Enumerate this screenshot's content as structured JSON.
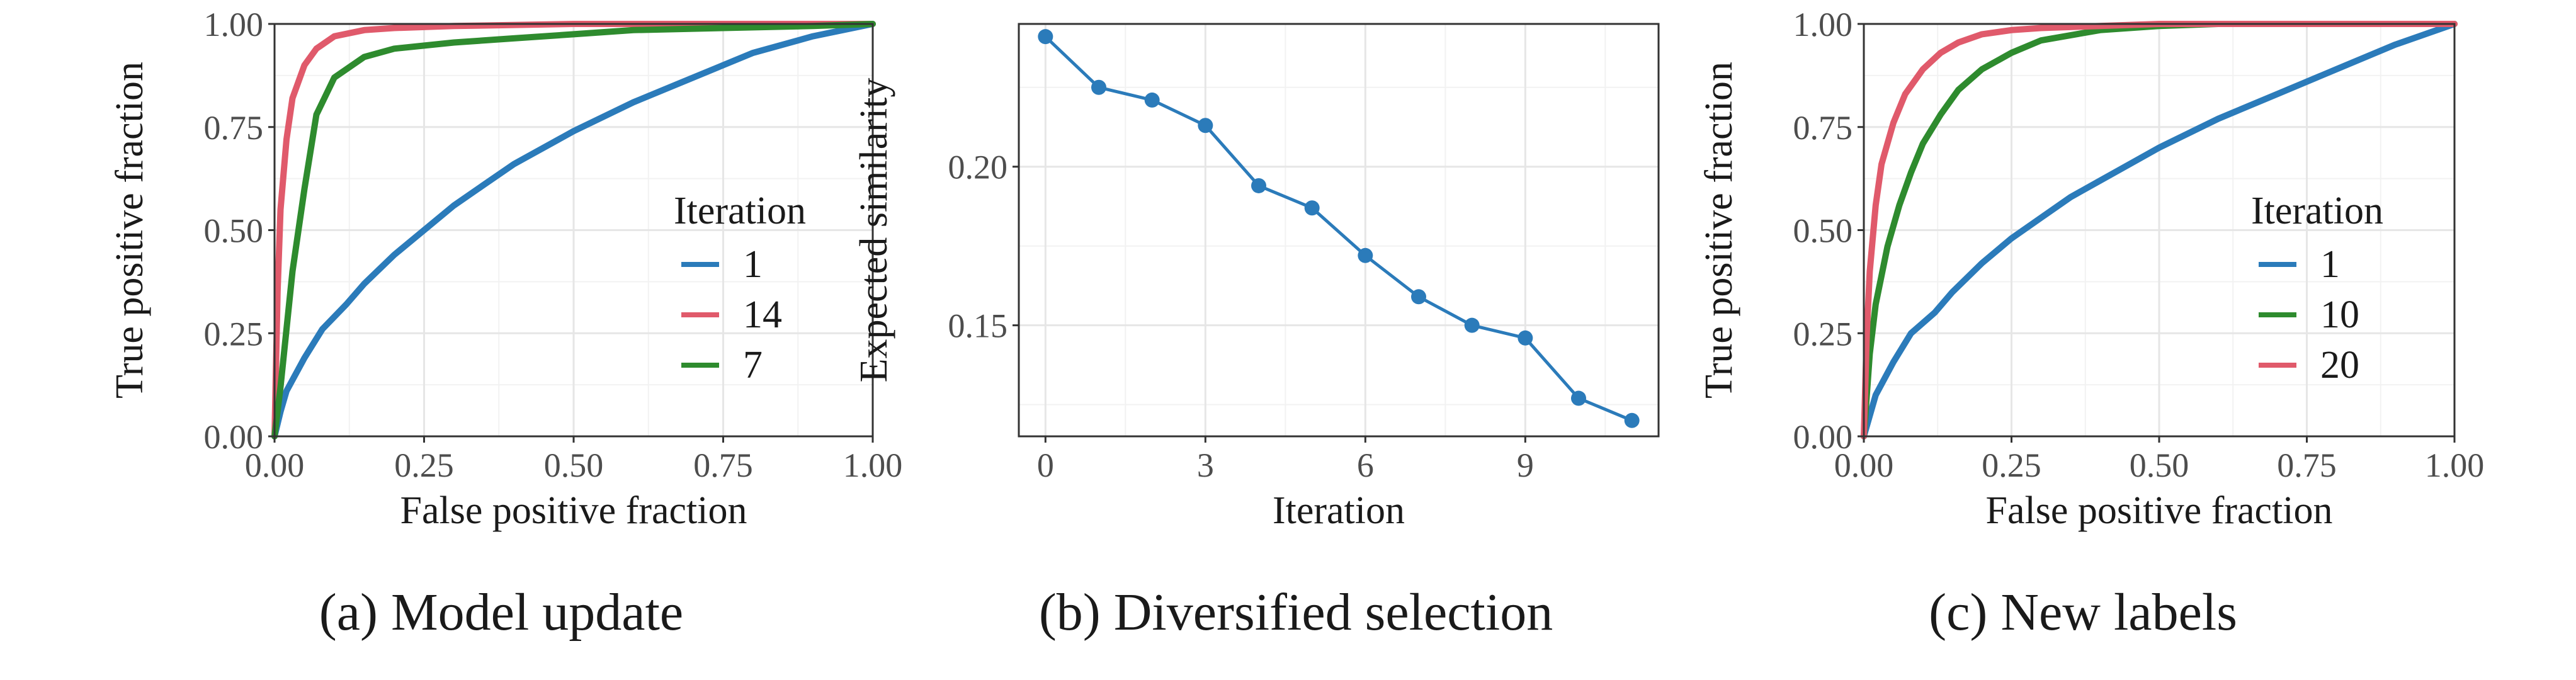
{
  "colors": {
    "blue": "#2b7bba",
    "red": "#e05a6b",
    "green": "#2e8b2e"
  },
  "captions": {
    "a": "(a) Model update",
    "b": "(b) Diversified selection",
    "c": "(c) New labels"
  },
  "chart_data": [
    {
      "type": "line",
      "panel": "a",
      "xlabel": "False positive fraction",
      "ylabel": "True positive fraction",
      "xlim": [
        0,
        1
      ],
      "ylim": [
        0,
        1
      ],
      "xticks": [
        "0.00",
        "0.25",
        "0.50",
        "0.75",
        "1.00"
      ],
      "yticks": [
        "0.00",
        "0.25",
        "0.50",
        "0.75",
        "1.00"
      ],
      "grid": true,
      "legend": {
        "title": "Iteration",
        "placement": "bottom-right",
        "entries": [
          "1",
          "14",
          "7"
        ]
      },
      "series": [
        {
          "name": "1",
          "color": "#2b7bba",
          "x": [
            0.0,
            0.01,
            0.02,
            0.05,
            0.08,
            0.12,
            0.15,
            0.2,
            0.25,
            0.3,
            0.35,
            0.4,
            0.5,
            0.6,
            0.7,
            0.8,
            0.9,
            1.0
          ],
          "y": [
            0.0,
            0.06,
            0.11,
            0.19,
            0.26,
            0.32,
            0.37,
            0.44,
            0.5,
            0.56,
            0.61,
            0.66,
            0.74,
            0.81,
            0.87,
            0.93,
            0.97,
            1.0
          ]
        },
        {
          "name": "14",
          "color": "#e05a6b",
          "x": [
            0.0,
            0.005,
            0.01,
            0.02,
            0.03,
            0.05,
            0.07,
            0.1,
            0.15,
            0.2,
            0.3,
            0.5,
            0.75,
            1.0
          ],
          "y": [
            0.0,
            0.35,
            0.55,
            0.72,
            0.82,
            0.9,
            0.94,
            0.97,
            0.985,
            0.99,
            0.995,
            1.0,
            1.0,
            1.0
          ]
        },
        {
          "name": "7",
          "color": "#2e8b2e",
          "x": [
            0.0,
            0.01,
            0.02,
            0.03,
            0.05,
            0.07,
            0.1,
            0.15,
            0.2,
            0.3,
            0.4,
            0.5,
            0.6,
            0.75,
            0.9,
            1.0
          ],
          "y": [
            0.0,
            0.12,
            0.26,
            0.4,
            0.6,
            0.78,
            0.87,
            0.92,
            0.94,
            0.955,
            0.965,
            0.975,
            0.985,
            0.99,
            0.995,
            1.0
          ]
        }
      ]
    },
    {
      "type": "line",
      "panel": "b",
      "xlabel": "Iteration",
      "ylabel": "Expected similarity",
      "xlim": [
        -0.5,
        11.5
      ],
      "ylim": [
        0.115,
        0.245
      ],
      "xticks": [
        0,
        3,
        6,
        9
      ],
      "yticks": [
        0.15,
        0.2
      ],
      "ytick_labels": [
        "0.15",
        "0.20"
      ],
      "grid": true,
      "series": [
        {
          "color": "#2b7bba",
          "markers": true,
          "x": [
            0,
            1,
            2,
            3,
            4,
            5,
            6,
            7,
            8,
            9,
            10,
            11
          ],
          "y": [
            0.241,
            0.225,
            0.221,
            0.213,
            0.194,
            0.187,
            0.172,
            0.159,
            0.15,
            0.146,
            0.127,
            0.12
          ]
        }
      ]
    },
    {
      "type": "line",
      "panel": "c",
      "xlabel": "False positive fraction",
      "ylabel": "True positive fraction",
      "xlim": [
        0,
        1
      ],
      "ylim": [
        0,
        1
      ],
      "xticks": [
        "0.00",
        "0.25",
        "0.50",
        "0.75",
        "1.00"
      ],
      "yticks": [
        "0.00",
        "0.25",
        "0.50",
        "0.75",
        "1.00"
      ],
      "grid": true,
      "legend": {
        "title": "Iteration",
        "placement": "bottom-right",
        "entries": [
          "1",
          "10",
          "20"
        ]
      },
      "series": [
        {
          "name": "1",
          "color": "#2b7bba",
          "x": [
            0.0,
            0.01,
            0.02,
            0.05,
            0.08,
            0.12,
            0.15,
            0.2,
            0.25,
            0.3,
            0.35,
            0.4,
            0.5,
            0.6,
            0.7,
            0.8,
            0.9,
            1.0
          ],
          "y": [
            0.0,
            0.05,
            0.1,
            0.18,
            0.25,
            0.3,
            0.35,
            0.42,
            0.48,
            0.53,
            0.58,
            0.62,
            0.7,
            0.77,
            0.83,
            0.89,
            0.95,
            1.0
          ]
        },
        {
          "name": "10",
          "color": "#2e8b2e",
          "x": [
            0.0,
            0.01,
            0.02,
            0.04,
            0.06,
            0.08,
            0.1,
            0.13,
            0.16,
            0.2,
            0.25,
            0.3,
            0.4,
            0.5,
            0.6,
            0.75,
            1.0
          ],
          "y": [
            0.0,
            0.2,
            0.32,
            0.46,
            0.56,
            0.64,
            0.71,
            0.78,
            0.84,
            0.89,
            0.93,
            0.96,
            0.985,
            0.995,
            1.0,
            1.0,
            1.0
          ]
        },
        {
          "name": "20",
          "color": "#e05a6b",
          "x": [
            0.0,
            0.005,
            0.01,
            0.02,
            0.03,
            0.05,
            0.07,
            0.1,
            0.13,
            0.16,
            0.2,
            0.25,
            0.3,
            0.4,
            0.5,
            0.75,
            1.0
          ],
          "y": [
            0.0,
            0.25,
            0.4,
            0.56,
            0.66,
            0.76,
            0.83,
            0.89,
            0.93,
            0.955,
            0.975,
            0.985,
            0.99,
            0.995,
            1.0,
            1.0,
            1.0
          ]
        }
      ]
    }
  ]
}
